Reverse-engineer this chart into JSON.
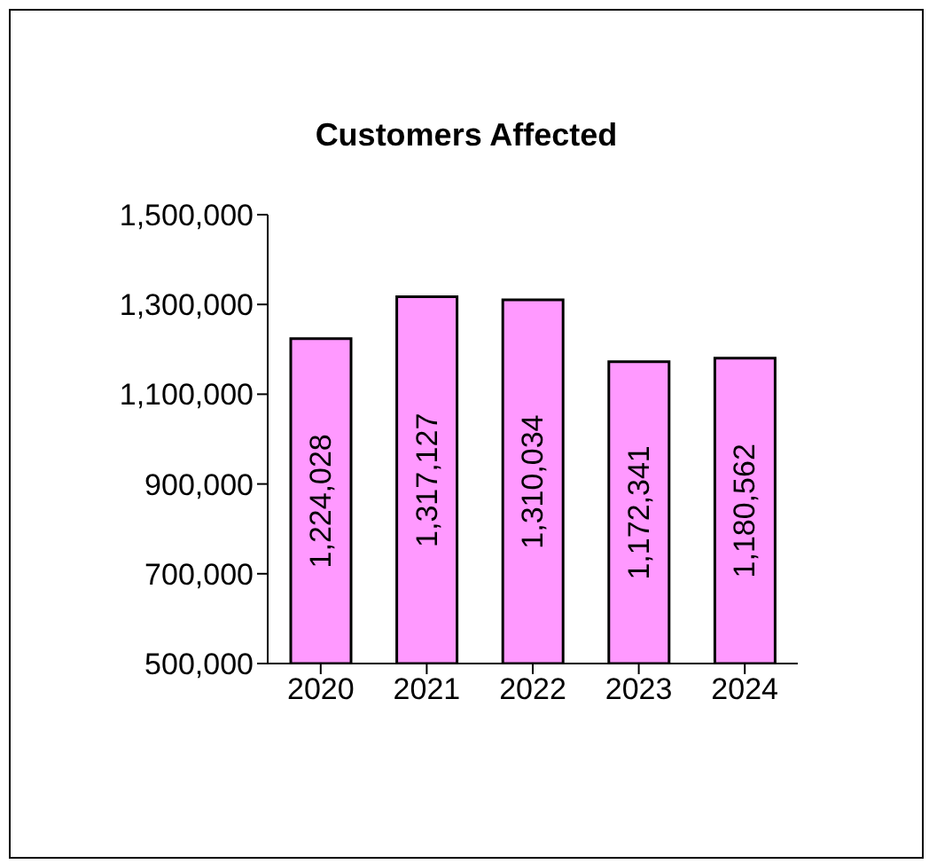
{
  "chart_data": {
    "type": "bar",
    "title": "Customers Affected",
    "categories": [
      "2020",
      "2021",
      "2022",
      "2023",
      "2024"
    ],
    "values": [
      1224028,
      1317127,
      1310034,
      1172341,
      1180562
    ],
    "value_labels": [
      "1,224,028",
      "1,317,127",
      "1,310,034",
      "1,172,341",
      "1,180,562"
    ],
    "color": "#ff99ff",
    "ylim": [
      500000,
      1500000
    ],
    "yticks": [
      {
        "value": 500000,
        "label": "500,000"
      },
      {
        "value": 700000,
        "label": "700,000"
      },
      {
        "value": 900000,
        "label": "900,000"
      },
      {
        "value": 1100000,
        "label": "1,100,000"
      },
      {
        "value": 1300000,
        "label": "1,300,000"
      },
      {
        "value": 1500000,
        "label": "1,500,000"
      }
    ],
    "grid": false,
    "legend": false
  }
}
